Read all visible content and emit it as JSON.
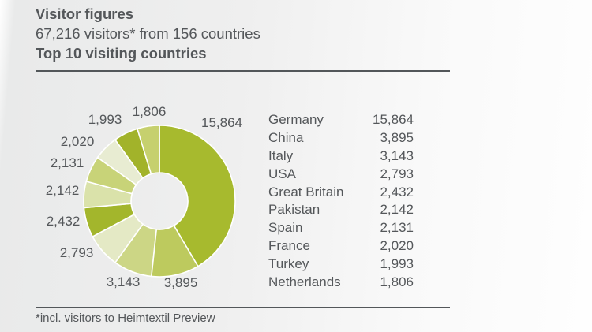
{
  "header": {
    "title": "Visitor figures",
    "subtitle": "67,216 visitors* from 156 countries",
    "subheading": "Top 10 visiting countries"
  },
  "footnote": "*incl. visitors to Heimtextil Preview",
  "chart_data": {
    "type": "pie",
    "donut": true,
    "title": "Top 10 visiting countries",
    "categories": [
      "Germany",
      "China",
      "Italy",
      "USA",
      "Great Britain",
      "Pakistan",
      "Spain",
      "France",
      "Turkey",
      "Netherlands"
    ],
    "values": [
      15864,
      3895,
      3143,
      2793,
      2432,
      2142,
      2131,
      2020,
      1993,
      1806
    ],
    "labels": [
      "15,864",
      "3,895",
      "3,143",
      "2,793",
      "2,432",
      "2,142",
      "2,131",
      "2,020",
      "1,993",
      "1,806"
    ],
    "colors": [
      "#a7ba2e",
      "#bdca5e",
      "#ccd685",
      "#e4e9c5",
      "#a3b62c",
      "#dae2aa",
      "#c8d378",
      "#e8ecd2",
      "#a2b32a",
      "#c6d06e"
    ],
    "total_label": "67,216",
    "start_angle_deg": 0,
    "direction": "clockwise",
    "legend_position": "right",
    "slice_border_color": "#ffffff",
    "text_color": "#54575a"
  }
}
